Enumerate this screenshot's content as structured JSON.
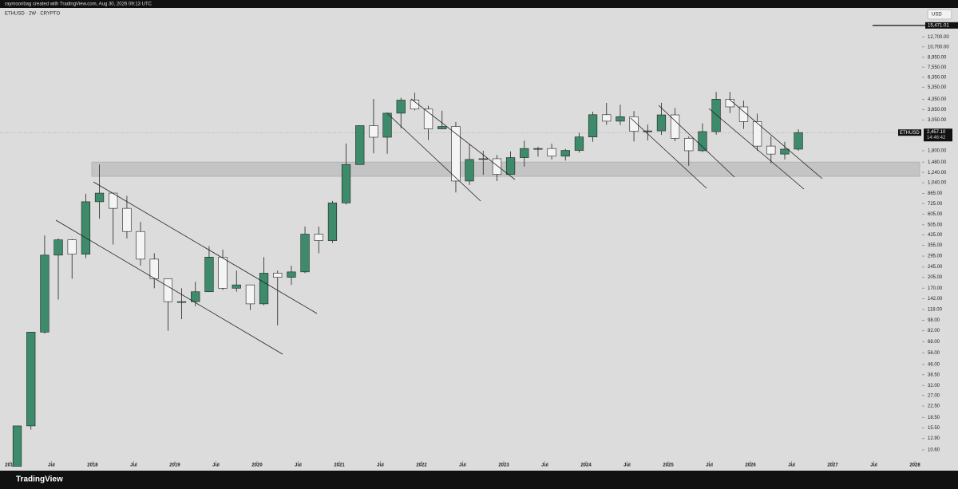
{
  "header": "raymoonbag created with TradingView.com, Aug 30, 2026 09:13 UTC",
  "brand": "TradingView",
  "currency_button": "USD",
  "chart_data": {
    "type": "candlestick",
    "title": "ETHUSD · 2W · CRYPTO",
    "log_scale": true,
    "up_color": "#3d8b6a",
    "down_color": "#f4f4f4",
    "x": [
      2017.083,
      2017.25,
      2017.417,
      2017.583,
      2017.75,
      2017.917,
      2018.083,
      2018.25,
      2018.417,
      2018.583,
      2018.75,
      2018.917,
      2019.083,
      2019.25,
      2019.417,
      2019.583,
      2019.75,
      2019.917,
      2020.083,
      2020.25,
      2020.417,
      2020.583,
      2020.75,
      2020.917,
      2021.083,
      2021.25,
      2021.417,
      2021.583,
      2021.75,
      2021.917,
      2022.083,
      2022.25,
      2022.417,
      2022.583,
      2022.75,
      2022.917,
      2023.083,
      2023.25,
      2023.417,
      2023.583,
      2023.75,
      2023.917,
      2024.083,
      2024.25,
      2024.417,
      2024.583,
      2024.75,
      2024.917,
      2025.083,
      2025.25,
      2025.417,
      2025.583,
      2025.75,
      2025.917,
      2026.083,
      2026.25,
      2026.417,
      2026.583
    ],
    "open": [
      8,
      16,
      80,
      300,
      390,
      305,
      750,
      870,
      670,
      450,
      280,
      200,
      135,
      135,
      160,
      290,
      170,
      180,
      130,
      220,
      205,
      225,
      430,
      385,
      735,
      1420,
      2770,
      2270,
      3430,
      4290,
      3680,
      2620,
      2730,
      1070,
      1550,
      1570,
      1200,
      1600,
      1870,
      1870,
      1640,
      1810,
      2280,
      3340,
      2990,
      3230,
      2510,
      2530,
      3330,
      2230,
      1800,
      2500,
      4360,
      3820,
      2970,
      1950,
      1700,
      1850
    ],
    "high": [
      16,
      80,
      420,
      400,
      395,
      860,
      1420,
      870,
      830,
      530,
      310,
      200,
      170,
      190,
      350,
      330,
      230,
      180,
      290,
      230,
      250,
      490,
      490,
      760,
      2040,
      2790,
      4380,
      3470,
      4470,
      4870,
      3900,
      3580,
      2950,
      2030,
      1800,
      1675,
      1780,
      2140,
      1930,
      2030,
      1860,
      2450,
      3520,
      4090,
      3970,
      3560,
      2820,
      4100,
      3740,
      2300,
      2880,
      4950,
      4950,
      4250,
      3400,
      2300,
      2100,
      2600
    ],
    "low": [
      8,
      15,
      78,
      140,
      200,
      285,
      560,
      360,
      400,
      250,
      170,
      82,
      100,
      125,
      160,
      165,
      160,
      117,
      127,
      90,
      180,
      220,
      310,
      370,
      715,
      1420,
      1720,
      1710,
      2650,
      3600,
      2160,
      2600,
      880,
      1000,
      1190,
      1070,
      1190,
      1370,
      1630,
      1550,
      1520,
      1740,
      2100,
      2810,
      2800,
      2110,
      2150,
      2360,
      2120,
      1390,
      1760,
      2370,
      3440,
      2620,
      1800,
      1450,
      1550,
      1800
    ],
    "close": [
      16,
      80,
      300,
      390,
      305,
      750,
      870,
      670,
      450,
      280,
      200,
      135,
      135,
      160,
      290,
      170,
      180,
      130,
      220,
      205,
      225,
      430,
      385,
      735,
      1420,
      2770,
      2270,
      3430,
      4290,
      3680,
      2620,
      2730,
      1070,
      1550,
      1570,
      1200,
      1600,
      1870,
      1870,
      1640,
      1810,
      2280,
      3340,
      2990,
      3230,
      2510,
      2530,
      3330,
      2230,
      1800,
      2500,
      4360,
      3820,
      2970,
      1950,
      1700,
      1850,
      2457.1
    ],
    "xlim": [
      2016.874,
      2028.087
    ],
    "xticks": [
      {
        "value": 2017,
        "label": "2017"
      },
      {
        "value": 2017.5,
        "label": "Jul"
      },
      {
        "value": 2018,
        "label": "2018"
      },
      {
        "value": 2018.5,
        "label": "Jul"
      },
      {
        "value": 2019,
        "label": "2019"
      },
      {
        "value": 2019.5,
        "label": "Jul"
      },
      {
        "value": 2020,
        "label": "2020"
      },
      {
        "value": 2020.5,
        "label": "Jul"
      },
      {
        "value": 2021,
        "label": "2021"
      },
      {
        "value": 2021.5,
        "label": "Jul"
      },
      {
        "value": 2022,
        "label": "2022"
      },
      {
        "value": 2022.5,
        "label": "Jul"
      },
      {
        "value": 2023,
        "label": "2023"
      },
      {
        "value": 2023.5,
        "label": "Jul"
      },
      {
        "value": 2024,
        "label": "2024"
      },
      {
        "value": 2024.5,
        "label": "Jul"
      },
      {
        "value": 2025,
        "label": "2025"
      },
      {
        "value": 2025.5,
        "label": "Jul"
      },
      {
        "value": 2026,
        "label": "2026"
      },
      {
        "value": 2026.5,
        "label": "Jul"
      },
      {
        "value": 2027,
        "label": "2027"
      },
      {
        "value": 2027.5,
        "label": "Jul"
      },
      {
        "value": 2028,
        "label": "2028"
      }
    ],
    "ylim": [
      8.75,
      20300
    ],
    "yticks": [
      {
        "value": 10.6,
        "label": "10.60"
      },
      {
        "value": 12.9,
        "label": "12.90"
      },
      {
        "value": 15.5,
        "label": "15.50"
      },
      {
        "value": 18.5,
        "label": "18.50"
      },
      {
        "value": 22.5,
        "label": "22.50"
      },
      {
        "value": 27,
        "label": "27.00"
      },
      {
        "value": 32,
        "label": "32.00"
      },
      {
        "value": 38.5,
        "label": "38.50"
      },
      {
        "value": 46,
        "label": "46.00"
      },
      {
        "value": 56,
        "label": "56.00"
      },
      {
        "value": 68,
        "label": "68.00"
      },
      {
        "value": 82,
        "label": "82.00"
      },
      {
        "value": 98,
        "label": "98.00"
      },
      {
        "value": 118,
        "label": "118.00"
      },
      {
        "value": 142,
        "label": "142.00"
      },
      {
        "value": 170,
        "label": "170.00"
      },
      {
        "value": 205,
        "label": "205.00"
      },
      {
        "value": 245,
        "label": "245.00"
      },
      {
        "value": 295,
        "label": "295.00"
      },
      {
        "value": 355,
        "label": "355.00"
      },
      {
        "value": 425,
        "label": "425.00"
      },
      {
        "value": 505,
        "label": "505.00"
      },
      {
        "value": 605,
        "label": "605.00"
      },
      {
        "value": 725,
        "label": "725.00"
      },
      {
        "value": 865,
        "label": "865.00"
      },
      {
        "value": 1040,
        "label": "1,040.00"
      },
      {
        "value": 1240,
        "label": "1,240.00"
      },
      {
        "value": 1480,
        "label": "1,480.00"
      },
      {
        "value": 1800,
        "label": "1,800.00"
      },
      {
        "value": 3050,
        "label": "3,050.00"
      },
      {
        "value": 3650,
        "label": "3,650.00"
      },
      {
        "value": 4350,
        "label": "4,350.00"
      },
      {
        "value": 5350,
        "label": "5,350.00"
      },
      {
        "value": 6350,
        "label": "6,350.00"
      },
      {
        "value": 7550,
        "label": "7,550.00"
      },
      {
        "value": 8950,
        "label": "8,950.00"
      },
      {
        "value": 10700,
        "label": "10,700.00"
      },
      {
        "value": 12700,
        "label": "12,700.00"
      }
    ],
    "zone": [
      1160,
      1480
    ],
    "price_line": {
      "value": 15471.01,
      "label": "15,471.01"
    },
    "last_price": {
      "symbol": "ETHUSD",
      "value": 2457.1,
      "label": "2,457.10",
      "countdown": "14:46:42"
    }
  }
}
